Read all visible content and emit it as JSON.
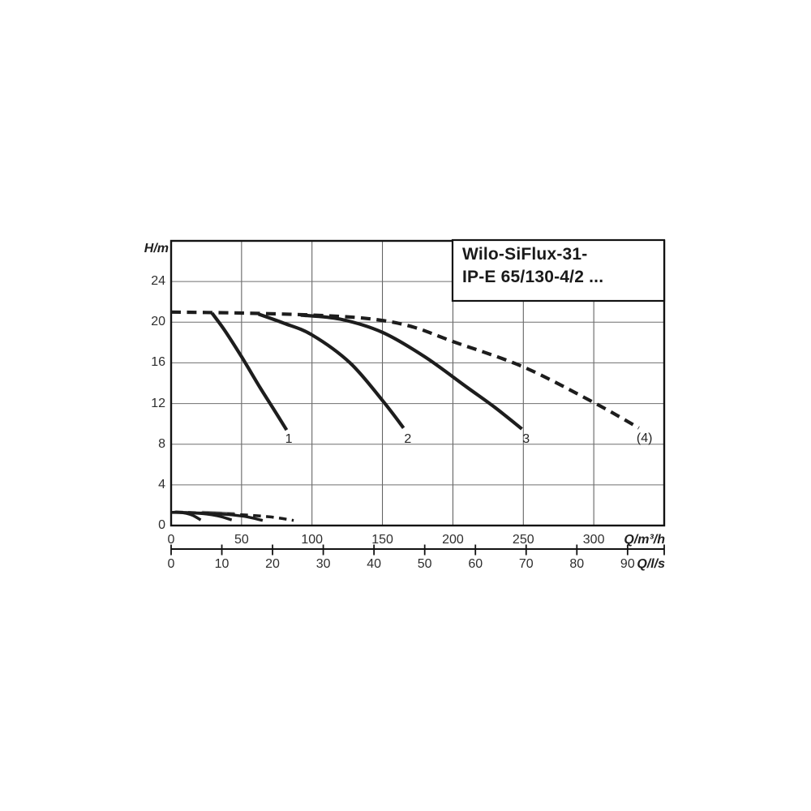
{
  "title_box": {
    "line1": "Wilo-SiFlux-31-",
    "line2": "IP-E 65/130-4/2 ..."
  },
  "axes": {
    "y": {
      "label": "H/m",
      "ticks": [
        0,
        4,
        8,
        12,
        16,
        20,
        24
      ],
      "gridlines": [
        4,
        8,
        12,
        16,
        20,
        24
      ],
      "range": [
        0,
        28
      ]
    },
    "x_primary": {
      "label": "Q/m³/h",
      "ticks": [
        0,
        50,
        100,
        150,
        200,
        250,
        300
      ],
      "gridlines": [
        50,
        100,
        150,
        200,
        250,
        300
      ],
      "range": [
        0,
        350
      ]
    },
    "x_secondary": {
      "label": "Q/l/s",
      "ticks": [
        0,
        10,
        20,
        30,
        40,
        50,
        60,
        70,
        80,
        90
      ],
      "unit_to_primary": 3.6
    }
  },
  "chart_data": {
    "type": "line",
    "title": "Wilo-SiFlux-31- IP-E 65/130-4/2 ...",
    "ylabel": "H/m",
    "xlabel": "Q/m³/h",
    "xlabel_secondary": "Q/l/s",
    "xlim": [
      0,
      350
    ],
    "ylim": [
      0,
      28
    ],
    "grid": true,
    "legend_position": "none",
    "series": [
      {
        "name": "pump-curve-1",
        "label": "1",
        "label_at": [
          83.5,
          8.45
        ],
        "style": "solid",
        "width": 4.2,
        "points": [
          [
            29,
            20.9
          ],
          [
            38,
            19.2
          ],
          [
            50,
            16.6
          ],
          [
            63,
            13.6
          ],
          [
            73,
            11.4
          ],
          [
            82,
            9.4
          ]
        ]
      },
      {
        "name": "pump-curve-2",
        "label": "2",
        "label_at": [
          168,
          8.45
        ],
        "style": "solid",
        "width": 4.2,
        "points": [
          [
            62,
            20.8
          ],
          [
            80,
            19.9
          ],
          [
            100,
            18.75
          ],
          [
            127,
            16.0
          ],
          [
            150,
            12.3
          ],
          [
            165,
            9.6
          ]
        ]
      },
      {
        "name": "pump-curve-3",
        "label": "3",
        "label_at": [
          252,
          8.45
        ],
        "style": "solid",
        "width": 4.2,
        "points": [
          [
            92,
            20.7
          ],
          [
            120,
            20.3
          ],
          [
            150,
            19.0
          ],
          [
            180,
            16.6
          ],
          [
            210,
            13.6
          ],
          [
            230,
            11.6
          ],
          [
            249,
            9.5
          ]
        ]
      },
      {
        "name": "pump-curve-4-max",
        "label": "(4)",
        "label_at": [
          336,
          8.5
        ],
        "style": "dashed",
        "width": 4.2,
        "dash": "12 7.5",
        "points": [
          [
            0,
            21.0
          ],
          [
            50,
            20.9
          ],
          [
            100,
            20.7
          ],
          [
            140,
            20.35
          ],
          [
            170,
            19.6
          ],
          [
            200,
            18.1
          ],
          [
            250,
            15.6
          ],
          [
            300,
            12.1
          ],
          [
            332,
            9.6
          ]
        ]
      },
      {
        "name": "lower-curve-overlap",
        "style": "solid",
        "width": 5,
        "color": "#8a8a8a",
        "points": [
          [
            22,
            1.26
          ],
          [
            45,
            1.12
          ]
        ]
      },
      {
        "name": "lower-curve-1",
        "style": "solid",
        "width": 3.5,
        "points": [
          [
            0,
            1.3
          ],
          [
            8,
            1.27
          ],
          [
            15,
            1.02
          ],
          [
            21,
            0.55
          ]
        ]
      },
      {
        "name": "lower-curve-2",
        "style": "solid",
        "width": 3.5,
        "points": [
          [
            0,
            1.3
          ],
          [
            20,
            1.2
          ],
          [
            33,
            0.95
          ],
          [
            43,
            0.55
          ]
        ]
      },
      {
        "name": "lower-curve-3",
        "style": "solid",
        "width": 3.5,
        "points": [
          [
            2,
            1.32
          ],
          [
            35,
            1.15
          ],
          [
            52,
            0.9
          ],
          [
            65,
            0.5
          ]
        ]
      },
      {
        "name": "lower-curve-4",
        "style": "dashed",
        "width": 3.5,
        "dash": "9.5 6.5",
        "points": [
          [
            3,
            1.33
          ],
          [
            45,
            1.1
          ],
          [
            70,
            0.85
          ],
          [
            87,
            0.5
          ]
        ]
      }
    ]
  },
  "colors": {
    "curve": "#1d1d1d",
    "grid_vertical": "#565656",
    "grid_horizontal": "#6f6f6f",
    "border": "#121212",
    "text": "#2e2e2e",
    "background": "#ffffff"
  }
}
